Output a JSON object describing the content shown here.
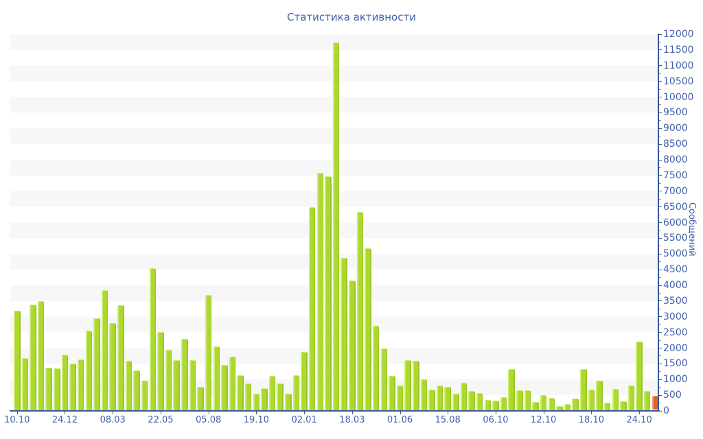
{
  "title": "Статистика активности",
  "y_axis": {
    "title": "Сообщений",
    "min": 0,
    "max": 12000,
    "major_step": 500,
    "minor_step": 250
  },
  "colors": {
    "bar_green": "#abd92c",
    "bar_green_light": "#cdea79",
    "bar_green_dark": "#9cc626",
    "bar_orange": "#e0622c",
    "bar_orange_light": "#eda065",
    "bar_orange_dark": "#cc5524",
    "axis_line": "#3a5894",
    "label_text": "#4060a8",
    "title_text": "#3c5fa8",
    "stripe_gray": "#f7f7f7",
    "background": "#ffffff"
  },
  "chart_data": {
    "type": "bar",
    "title": "Статистика активности",
    "xlabel": "",
    "ylabel": "Сообщений",
    "ylim": [
      0,
      12000
    ],
    "y_tick_step": 500,
    "grid": "horizontal gray/white bands, one band per 500 units",
    "legend": "none",
    "x_tick_labels": [
      "10.10",
      "24.12",
      "08.03",
      "22.05",
      "05.08",
      "19.10",
      "02.01",
      "18.03",
      "01.06",
      "15.08",
      "06.10",
      "12.10",
      "18.10",
      "24.10"
    ],
    "x_tick_bar_indices": [
      0,
      6,
      12,
      18,
      24,
      30,
      36,
      42,
      48,
      54,
      60,
      66,
      72,
      78
    ],
    "values": [
      3190,
      1690,
      3390,
      3490,
      1380,
      1350,
      1800,
      1510,
      1630,
      2560,
      2950,
      3840,
      2790,
      3370,
      1600,
      1300,
      960,
      4550,
      2510,
      1950,
      1610,
      2290,
      1610,
      765,
      3700,
      2050,
      1470,
      1730,
      1140,
      880,
      550,
      730,
      1110,
      870,
      550,
      1130,
      1870,
      6500,
      7590,
      7470,
      11730,
      4870,
      4150,
      6330,
      5190,
      2710,
      2000,
      1110,
      800,
      1620,
      1600,
      1000,
      670,
      800,
      760,
      540,
      900,
      640,
      575,
      360,
      320,
      440,
      1340,
      660,
      650,
      285,
      500,
      420,
      150,
      210,
      390,
      1330,
      670,
      960,
      260,
      690,
      310,
      800,
      2200,
      640,
      480
    ],
    "bar_color_note": "all bars lime green; final bar is stacked: green base 85 plus orange segment up to total 480",
    "last_bar": {
      "green_base": 85,
      "total": 480,
      "color": "orange"
    }
  }
}
